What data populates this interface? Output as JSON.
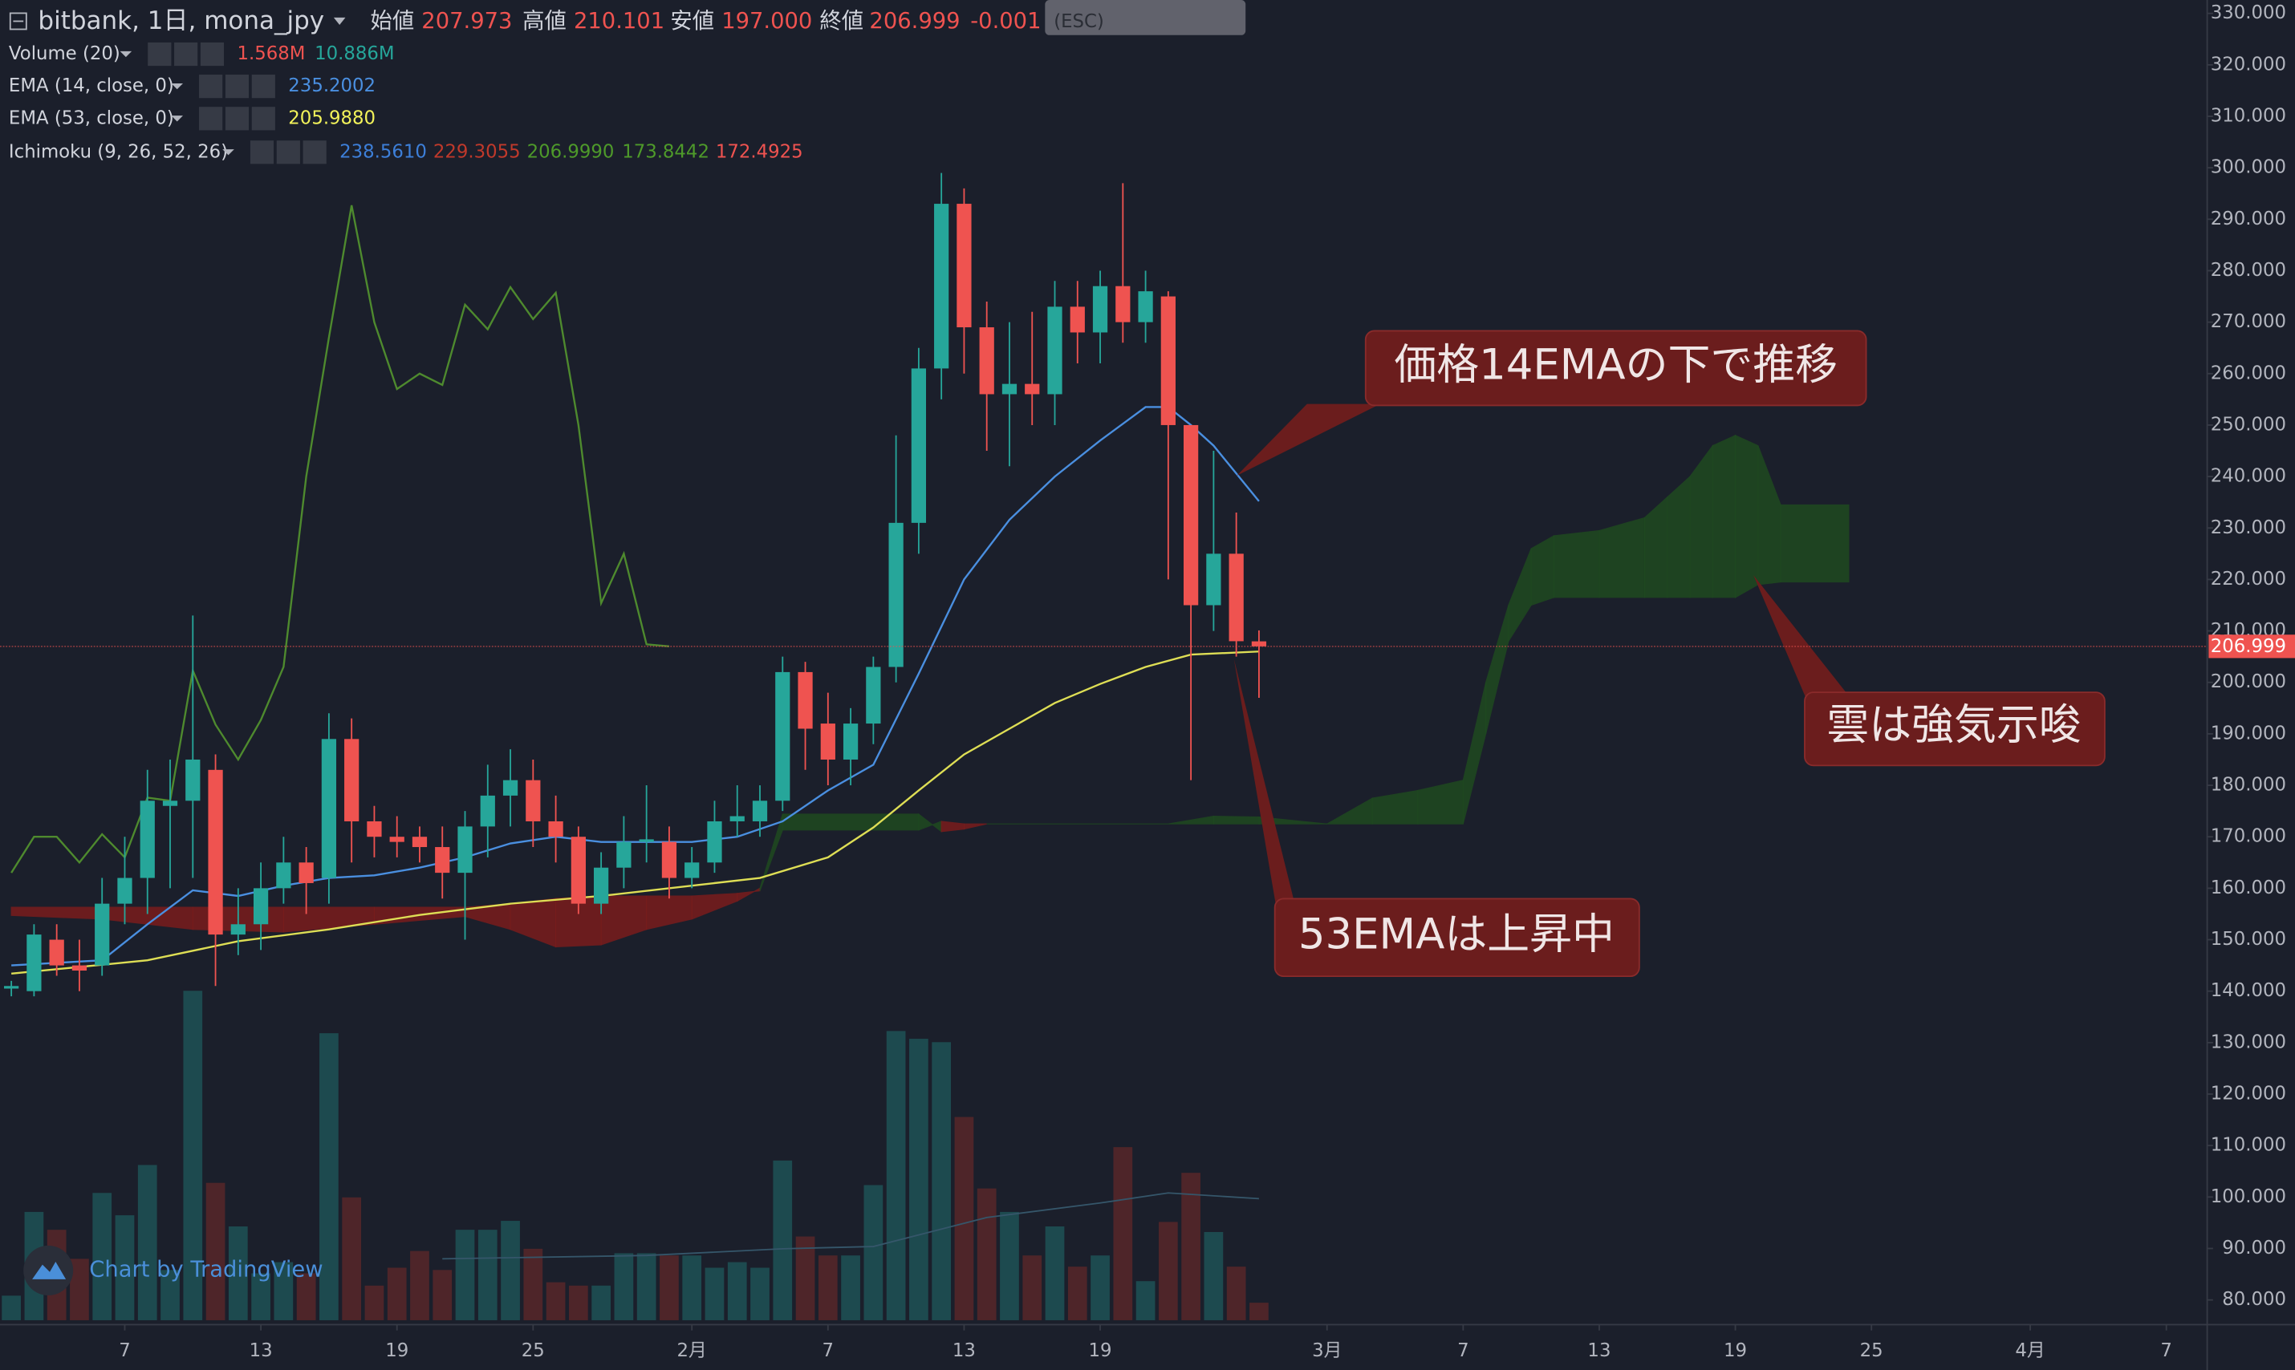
{
  "chart_data": {
    "type": "candlestick",
    "title": "bitbank, 1日, mona_jpy",
    "ohlc_legend": [
      {
        "label": "始値",
        "value": "207.973"
      },
      {
        "label": "高値",
        "value": "210.101"
      },
      {
        "label": "安値",
        "value": "197.000"
      },
      {
        "label": "終値",
        "value": "206.999"
      }
    ],
    "change": "-0.001",
    "tooltip": "(ESC)",
    "indicators": [
      {
        "name": "Volume (20)",
        "values": [
          "1.568M",
          "10.886M"
        ],
        "colors": [
          "#ef5350",
          "#26a69a"
        ]
      },
      {
        "name": "EMA (14, close, 0)",
        "values": [
          "235.2002"
        ],
        "colors": [
          "#4a8fe0"
        ]
      },
      {
        "name": "EMA (53, close, 0)",
        "values": [
          "205.9880"
        ],
        "colors": [
          "#f2f25a"
        ]
      },
      {
        "name": "Ichimoku (9, 26, 52, 26)",
        "values": [
          "238.5610",
          "229.3055",
          "206.9990",
          "173.8442",
          "172.4925"
        ],
        "colors": [
          "#3d7fd9",
          "#c0392b",
          "#4e9a2a",
          "#4e9a2a",
          "#ef5350"
        ]
      }
    ],
    "annotations": [
      "価格14EMAの下で推移",
      "雲は強気示唆",
      "53EMAは上昇中"
    ],
    "watermark": "Chart by TradingView",
    "up_color": "#26a69a",
    "down_color": "#ef5350",
    "x": [
      2,
      3,
      4,
      5,
      6,
      7,
      8,
      9,
      10,
      11,
      12,
      13,
      14,
      15,
      16,
      17,
      18,
      19,
      20,
      21,
      22,
      23,
      24,
      25,
      26,
      27,
      28,
      29,
      30,
      31,
      32,
      33,
      34,
      35,
      36,
      37,
      38,
      39,
      40,
      41,
      42,
      43,
      44,
      45,
      46,
      47,
      48,
      49,
      50,
      51,
      52,
      53,
      54,
      55,
      56,
      57
    ],
    "open": [
      140.5,
      140,
      150,
      145,
      145,
      157,
      162,
      176,
      177,
      183,
      151,
      153,
      160,
      165,
      162,
      189,
      173,
      170,
      170,
      168,
      163,
      172,
      178,
      181,
      173,
      170,
      157,
      164,
      169,
      169,
      162,
      165,
      173,
      173,
      177,
      202,
      192,
      185,
      192,
      203,
      231,
      261,
      293,
      269,
      256,
      258,
      256,
      273,
      268,
      277,
      270,
      275,
      250,
      215,
      225,
      207.973
    ],
    "high": [
      142,
      153,
      153,
      150,
      162,
      170,
      183,
      185,
      213,
      186,
      160,
      165,
      170,
      168,
      194,
      193,
      176,
      174,
      172,
      172,
      175,
      184,
      187,
      185,
      178,
      172,
      167,
      174,
      180,
      172,
      168,
      177,
      180,
      180,
      205,
      204,
      198,
      195,
      205,
      248,
      265,
      299,
      296,
      274,
      270,
      272,
      278,
      278,
      280,
      297,
      280,
      276,
      250,
      245,
      233,
      210.101
    ],
    "low": [
      139,
      139,
      143,
      140,
      143,
      153,
      155,
      160,
      162,
      141,
      147,
      148,
      157,
      155,
      157,
      165,
      166,
      166,
      165,
      158,
      150,
      166,
      172,
      168,
      165,
      155,
      155,
      160,
      165,
      158,
      160,
      163,
      170,
      170,
      175,
      183,
      180,
      180,
      188,
      200,
      225,
      255,
      260,
      245,
      242,
      250,
      250,
      262,
      262,
      266,
      266,
      220,
      181,
      210,
      205,
      197
    ],
    "close": [
      141,
      151,
      145,
      144,
      157,
      162,
      177,
      177,
      185,
      151,
      153,
      160,
      165,
      161,
      189,
      173,
      170,
      169,
      168,
      163,
      172,
      178,
      181,
      173,
      170,
      157,
      164,
      169,
      169.5,
      162,
      165,
      173,
      174,
      177,
      202,
      191,
      185,
      192,
      203,
      231,
      261,
      293,
      269,
      256,
      258,
      256,
      273,
      268,
      277,
      270,
      276,
      250,
      215,
      225,
      208,
      206.999
    ],
    "volume": {
      "values": [
        2.2,
        9.7,
        8.1,
        5.5,
        11.4,
        9.4,
        13.9,
        4.5,
        29.5,
        12.3,
        8.4,
        4.2,
        5.2,
        4.2,
        25.7,
        11,
        3.1,
        4.7,
        6.2,
        4.5,
        8.1,
        8.1,
        8.9,
        6.4,
        3.4,
        3.1,
        3.1,
        6,
        6,
        5.8,
        5.8,
        4.7,
        5.2,
        4.7,
        14.3,
        7.5,
        5.8,
        5.8,
        12.1,
        25.9,
        25.2,
        24.9,
        18.2,
        11.8,
        9.7,
        5.8,
        8.4,
        4.8,
        5.8,
        15.5,
        3.5,
        8.8,
        13.2,
        7.9,
        4.8,
        1.568
      ],
      "up_color": "#1d4a4f",
      "down_color": "#4e2529"
    },
    "volume_ma": {
      "color": "#35566a",
      "x": [
        21,
        30,
        36,
        40,
        45,
        50,
        53,
        57
      ],
      "values": [
        5.5,
        5.8,
        6.4,
        6.6,
        9.2,
        10.5,
        11.4,
        10.886
      ]
    },
    "ema14": {
      "color": "#4a8fe0",
      "x": [
        2,
        6,
        8,
        10,
        12,
        14,
        16,
        18,
        20,
        22,
        24,
        26,
        28,
        30,
        32,
        34,
        36,
        38,
        40,
        42,
        44,
        46,
        48,
        50,
        52,
        53,
        54,
        55,
        57
      ],
      "values": [
        145,
        146,
        153,
        159.6,
        158.5,
        160.5,
        162,
        162.5,
        164,
        166,
        168.7,
        170,
        169,
        169,
        169,
        170,
        173,
        179,
        184,
        201.7,
        220,
        231.6,
        240,
        247,
        253.5,
        253.5,
        250,
        246,
        235.2
      ]
    },
    "ema53": {
      "color": "#dede55",
      "x": [
        2,
        8,
        12,
        16,
        20,
        24,
        28,
        32,
        35,
        38,
        40,
        42,
        44,
        46,
        48,
        50,
        52,
        54,
        57
      ],
      "values": [
        143.4,
        146,
        149.7,
        152,
        154.8,
        157,
        158.5,
        160.5,
        162,
        166,
        171.8,
        179,
        186,
        191,
        196,
        199.7,
        203,
        205.4,
        206
      ]
    },
    "chikou": {
      "color": "#4e8a2e",
      "x": [
        2,
        3,
        4,
        5,
        6,
        7,
        8,
        9,
        10,
        11,
        12,
        13,
        14,
        15,
        16,
        17,
        18,
        19,
        20,
        21,
        22,
        23,
        24,
        25,
        26,
        27,
        28,
        29,
        30,
        31
      ],
      "values": [
        163,
        170,
        170,
        165,
        170.5,
        166,
        177.6,
        177,
        202.3,
        191.8,
        185,
        192.7,
        203,
        240,
        267,
        292.7,
        270,
        257,
        260,
        257.8,
        273.4,
        268.6,
        276.8,
        270.6,
        275.7,
        250,
        215.4,
        225,
        207.4,
        207
      ]
    },
    "cloud": {
      "up_color": "#1f4a20",
      "down_color": "#7a1c1c",
      "x": [
        2,
        6,
        10,
        14,
        18,
        22,
        24,
        26,
        28,
        30,
        32,
        34,
        35,
        36,
        42,
        43,
        44,
        45,
        50,
        53,
        55,
        57,
        60,
        62,
        64,
        66,
        67,
        68,
        69,
        70,
        72,
        74,
        75,
        76,
        77,
        78,
        79,
        80,
        83
      ],
      "span_a": [
        154.7,
        154,
        152,
        151.5,
        153,
        154.5,
        152,
        148.6,
        149,
        152,
        154,
        157.5,
        160,
        174.4,
        174.4,
        171,
        171.5,
        172.5,
        172.5,
        172.5,
        174,
        173.8442,
        172.5,
        177.5,
        179,
        181,
        200,
        215,
        226,
        228.5,
        229.5,
        232,
        236,
        240,
        246,
        248,
        246,
        234.5,
        234.5
      ],
      "span_b": [
        156.3,
        156.3,
        156.3,
        156.3,
        156.3,
        156.3,
        157,
        158,
        158.5,
        158.5,
        158.5,
        159,
        159.5,
        171.3,
        171.3,
        173,
        172.5,
        172.5,
        172.5,
        172.5,
        172.5,
        172.4925,
        172.5,
        172.5,
        172.5,
        172.5,
        190,
        208,
        215,
        216.5,
        216.5,
        216.5,
        216.5,
        216.5,
        216.5,
        216.5,
        219,
        219.5,
        219.5
      ]
    },
    "last_price": {
      "value": 206.999,
      "label": "206.999",
      "color": "#ef5350"
    },
    "xlim": [
      1.5,
      98.8
    ],
    "xticks": [
      7,
      13,
      19,
      25,
      {
        "value": 32,
        "label": "2月"
      },
      {
        "value": 38,
        "label": "7"
      },
      {
        "value": 44,
        "label": "13"
      },
      {
        "value": 50,
        "label": "19"
      },
      {
        "value": 60,
        "label": "3月"
      },
      {
        "value": 66,
        "label": "7"
      },
      {
        "value": 72,
        "label": "13"
      },
      {
        "value": 78,
        "label": "19"
      },
      {
        "value": 84,
        "label": "25"
      },
      {
        "value": 91,
        "label": "4月"
      },
      {
        "value": 97,
        "label": "7"
      }
    ],
    "ylim": [
      75.2,
      332.6
    ],
    "yticks": [
      {
        "value": 80,
        "label": "80.000"
      },
      {
        "value": 90,
        "label": "90.000"
      },
      {
        "value": 100,
        "label": "100.000"
      },
      {
        "value": 110,
        "label": "110.000"
      },
      {
        "value": 120,
        "label": "120.000"
      },
      {
        "value": 130,
        "label": "130.000"
      },
      {
        "value": 140,
        "label": "140.000"
      },
      {
        "value": 150,
        "label": "150.000"
      },
      {
        "value": 160,
        "label": "160.000"
      },
      {
        "value": 170,
        "label": "170.000"
      },
      {
        "value": 180,
        "label": "180.000"
      },
      {
        "value": 190,
        "label": "190.000"
      },
      {
        "value": 200,
        "label": "200.000"
      },
      {
        "value": 210,
        "label": "210.000"
      },
      {
        "value": 220,
        "label": "220.000"
      },
      {
        "value": 230,
        "label": "230.000"
      },
      {
        "value": 240,
        "label": "240.000"
      },
      {
        "value": 250,
        "label": "250.000"
      },
      {
        "value": 260,
        "label": "260.000"
      },
      {
        "value": 270,
        "label": "270.000"
      },
      {
        "value": 280,
        "label": "280.000"
      },
      {
        "value": 290,
        "label": "290.000"
      },
      {
        "value": 300,
        "label": "300.000"
      },
      {
        "value": 310,
        "label": "310.000"
      },
      {
        "value": 320,
        "label": "320.000"
      },
      {
        "value": 330,
        "label": "330.000"
      }
    ],
    "grid": false
  }
}
